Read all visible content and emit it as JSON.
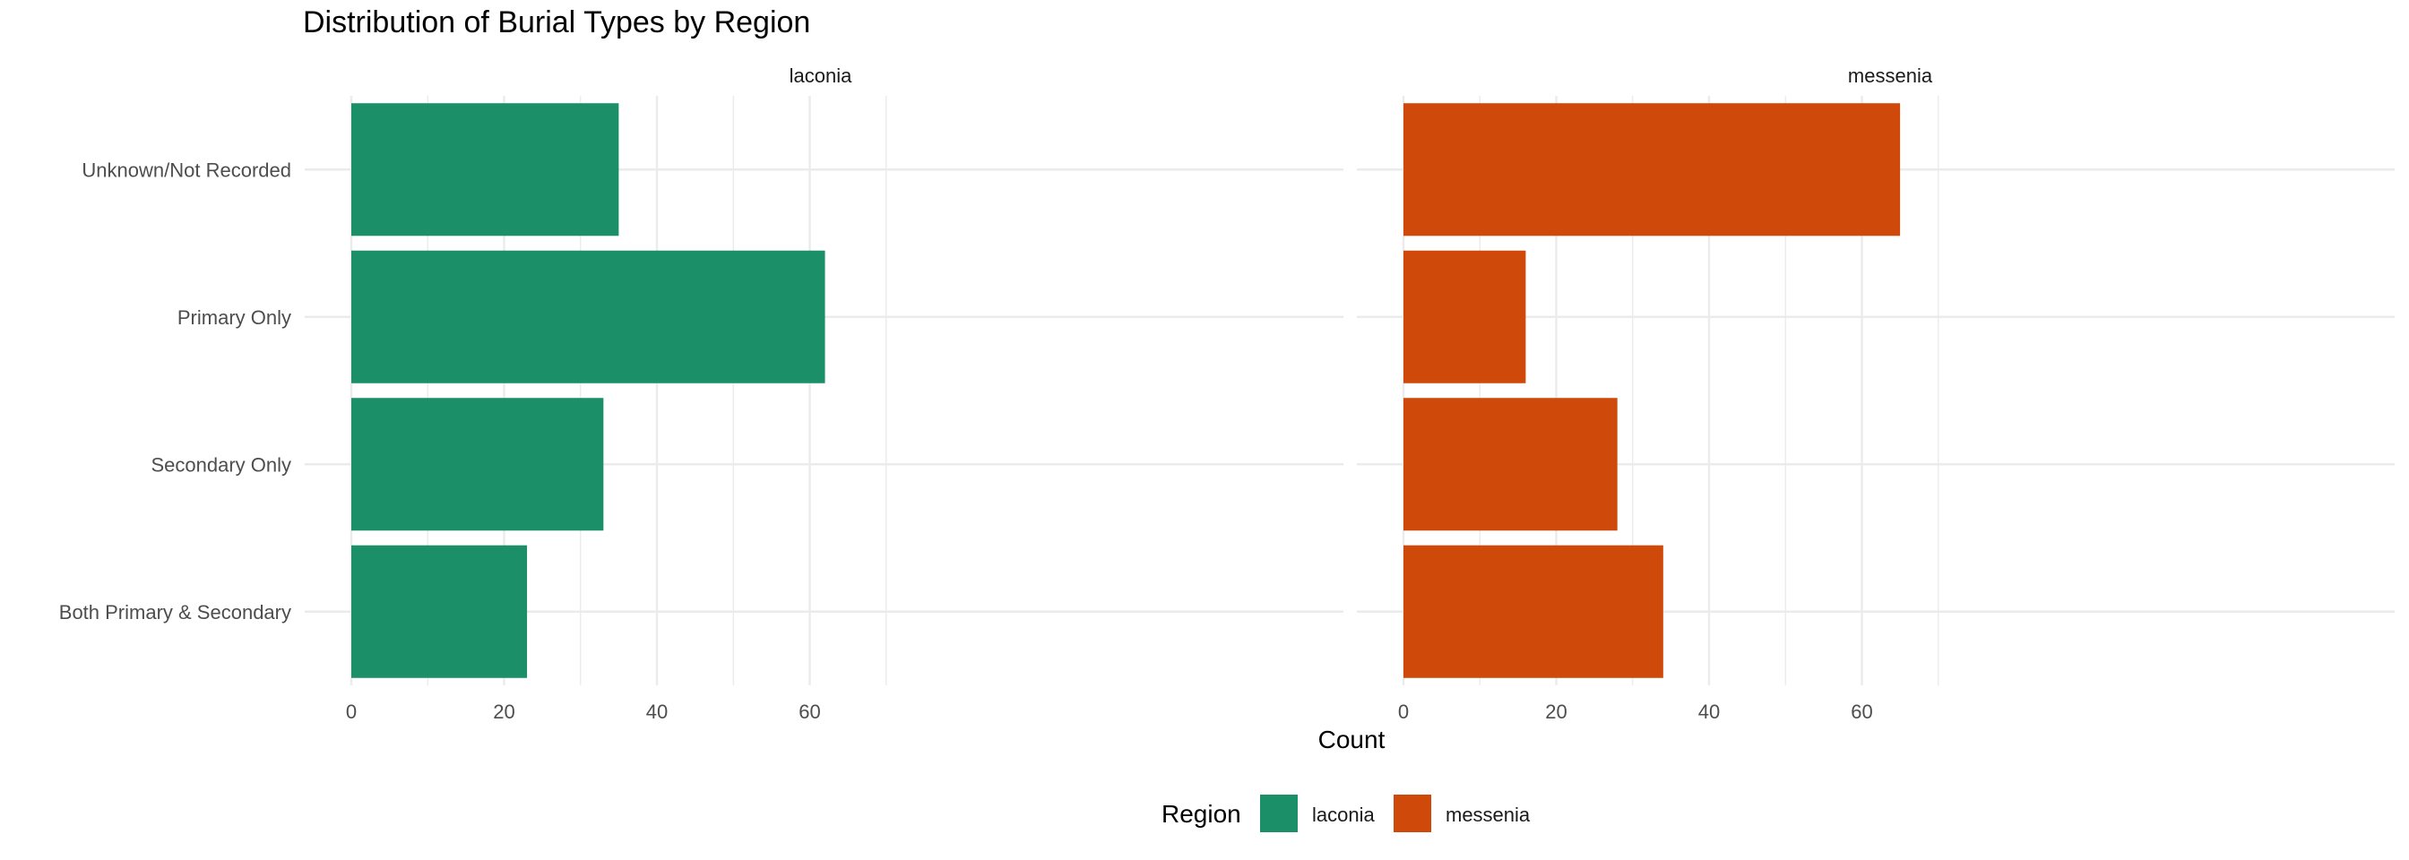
{
  "chart_data": {
    "type": "bar",
    "orientation": "horizontal",
    "title": "Distribution of Burial Types by Region",
    "xlabel": "Count",
    "ylabel": "",
    "xlim": [
      0,
      65
    ],
    "x_ticks": [
      0,
      20,
      40,
      60
    ],
    "categories": [
      "Unknown/Not Recorded",
      "Primary Only",
      "Secondary Only",
      "Both Primary & Secondary"
    ],
    "series": [
      {
        "name": "laconia",
        "color": "#1B9068",
        "values": [
          35,
          62,
          33,
          23
        ]
      },
      {
        "name": "messenia",
        "color": "#CF4A0A",
        "values": [
          65,
          16,
          28,
          34
        ]
      }
    ],
    "facets": [
      "laconia",
      "messenia"
    ],
    "legend": {
      "title": "Region",
      "position": "bottom"
    },
    "grid": true
  }
}
